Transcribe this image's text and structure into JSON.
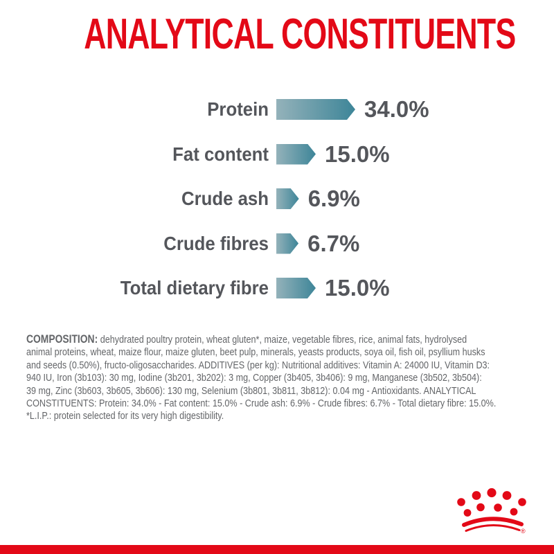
{
  "chart_data": {
    "type": "bar",
    "orientation": "horizontal",
    "title": "ANALYTICAL CONSTITUENTS",
    "unit": "%",
    "categories": [
      "Protein",
      "Fat content",
      "Crude ash",
      "Crude fibres",
      "Total dietary fibre"
    ],
    "values": [
      34.0,
      15.0,
      6.9,
      6.7,
      15.0
    ],
    "display_values": [
      "34.0%",
      "15.0%",
      "6.9%",
      "6.7%",
      "15.0%"
    ],
    "xlim": [
      0,
      40
    ],
    "grid": false,
    "legend": false
  },
  "composition": {
    "label": "COMPOSITION:",
    "lines": [
      "dehydrated poultry protein, wheat gluten*, maize, vegetable fibres, rice, animal fats, hydrolysed",
      "animal proteins, wheat, maize flour, maize gluten, beet pulp, minerals, yeasts products, soya oil, fish oil, psyllium husks",
      "and seeds (0.50%), fructo-oligosaccharides. ADDITIVES (per kg): Nutritional additives: Vitamin A: 24000 IU, Vitamin D3:",
      "940 IU, Iron (3b103): 30 mg, Iodine (3b201, 3b202): 3 mg, Copper (3b405, 3b406): 9 mg, Manganese (3b502, 3b504):",
      "39 mg, Zinc (3b603, 3b605, 3b606): 130 mg, Selenium (3b801, 3b811, 3b812): 0.04 mg - Antioxidants. ANALYTICAL",
      "CONSTITUENTS: Protein: 34.0% - Fat content: 15.0% - Crude ash: 6.9% - Crude fibres: 6.7% - Total dietary fibre: 15.0%.",
      "*L.I.P.: protein selected for its very high digestibility."
    ]
  },
  "footer": {
    "registered_symbol": "®"
  },
  "colors": {
    "red": "#e30917",
    "bar_gradient_start": "#94b2ba",
    "bar_gradient_end": "#3d8598",
    "text_gray": "#54565b",
    "body_gray": "#636568"
  }
}
